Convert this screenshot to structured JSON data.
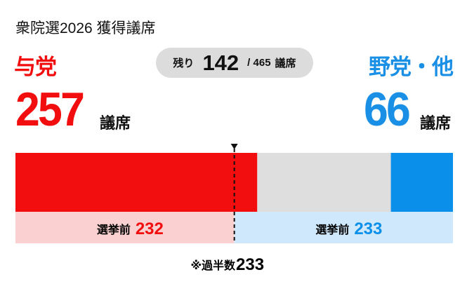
{
  "title": "衆院選2026 獲得議席",
  "ruling": {
    "label": "与党",
    "seats": 257,
    "unit": "議席",
    "prev_label": "選挙前",
    "prev": 232,
    "color": "#f20e0e",
    "prev_bg": "#fbd0d0"
  },
  "opposition": {
    "label": "野党・他",
    "seats": 66,
    "unit": "議席",
    "prev_label": "選挙前",
    "prev": 233,
    "color": "#0a8fea",
    "prev_bg": "#cfe8fb"
  },
  "remaining": {
    "label": "残り",
    "value": 142,
    "total_text": "/ 465",
    "unit": "議席",
    "color": "#dedede"
  },
  "majority": {
    "label": "※過半数",
    "value": 233
  },
  "chart_data": {
    "type": "bar",
    "orientation": "horizontal-stacked",
    "total": 465,
    "series": [
      {
        "name": "与党",
        "values": [
          257
        ]
      },
      {
        "name": "残り",
        "values": [
          142
        ]
      },
      {
        "name": "野党・他",
        "values": [
          66
        ]
      }
    ],
    "previous": {
      "与党": 232,
      "野党・他": 233
    },
    "majority_line": 233
  }
}
